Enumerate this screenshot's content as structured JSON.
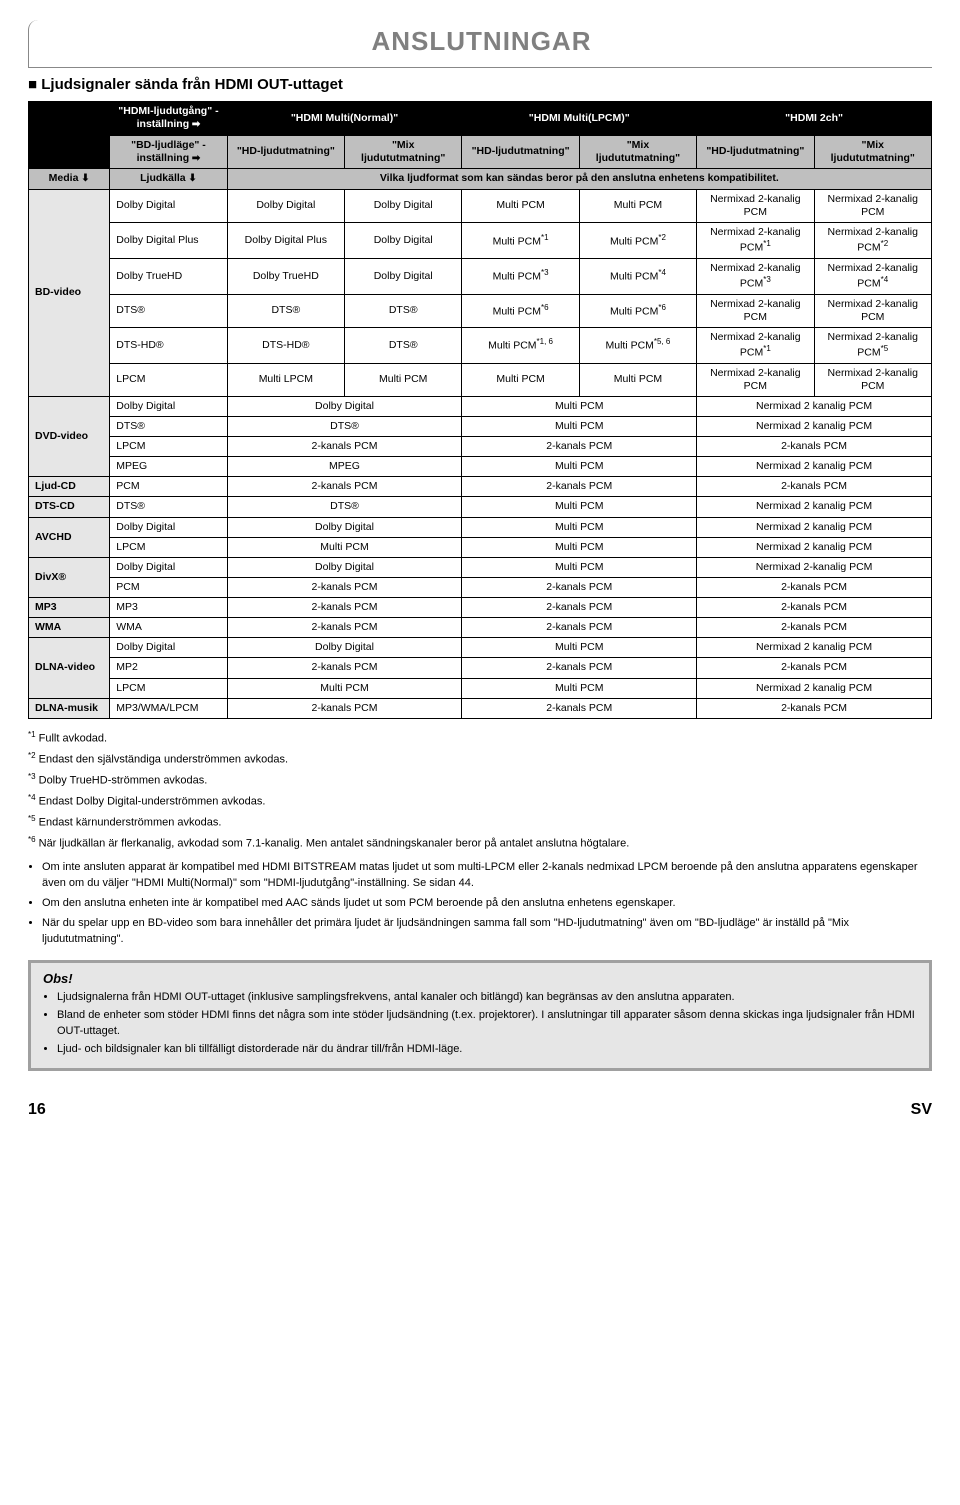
{
  "title": "ANSLUTNINGAR",
  "section": "Ljudsignaler sända från HDMI OUT-uttaget",
  "headers": {
    "hdmi_out": "\"HDMI-ljudutgång\" - inställning",
    "multi_normal": "\"HDMI Multi(Normal)\"",
    "multi_lpcm": "\"HDMI Multi(LPCM)\"",
    "hdmi_2ch": "\"HDMI 2ch\"",
    "bd_mode": "\"BD-ljudläge\" - inställning",
    "hd_out": "\"HD-ljudutmatning\"",
    "mix_out": "\"Mix ljudututmatning\"",
    "media": "Media",
    "source": "Ljudkälla",
    "compat": "Vilka ljudformat som kan sändas beror på den anslutna enhetens kompatibilitet."
  },
  "bd_rows": [
    {
      "src": "Dolby Digital",
      "c": [
        "Dolby Digital",
        "Dolby Digital",
        "Multi PCM",
        "Multi PCM",
        "Nermixad 2-kanalig PCM",
        "Nermixad 2-kanalig PCM"
      ]
    },
    {
      "src": "Dolby Digital Plus",
      "c": [
        "Dolby Digital Plus",
        "Dolby Digital",
        "Multi PCM<sup>*1</sup>",
        "Multi PCM<sup>*2</sup>",
        "Nermixad 2-kanalig PCM<sup>*1</sup>",
        "Nermixad 2-kanalig PCM<sup>*2</sup>"
      ]
    },
    {
      "src": "Dolby TrueHD",
      "c": [
        "Dolby TrueHD",
        "Dolby Digital",
        "Multi PCM<sup>*3</sup>",
        "Multi PCM<sup>*4</sup>",
        "Nermixad 2-kanalig PCM<sup>*3</sup>",
        "Nermixad 2-kanalig PCM<sup>*4</sup>"
      ]
    },
    {
      "src": "DTS®",
      "c": [
        "DTS®",
        "DTS®",
        "Multi PCM<sup>*6</sup>",
        "Multi PCM<sup>*6</sup>",
        "Nermixad 2-kanalig PCM",
        "Nermixad 2-kanalig PCM"
      ]
    },
    {
      "src": "DTS-HD®",
      "c": [
        "DTS-HD®",
        "DTS®",
        "Multi PCM<sup>*1, 6</sup>",
        "Multi PCM<sup>*5, 6</sup>",
        "Nermixad 2-kanalig PCM<sup>*1</sup>",
        "Nermixad 2-kanalig PCM<sup>*5</sup>"
      ]
    },
    {
      "src": "LPCM",
      "c": [
        "Multi LPCM",
        "Multi PCM",
        "Multi PCM",
        "Multi PCM",
        "Nermixad 2-kanalig PCM",
        "Nermixad 2-kanalig PCM"
      ]
    }
  ],
  "wide_sections": [
    {
      "media": "DVD-video",
      "rows": [
        {
          "src": "Dolby Digital",
          "c": [
            "Dolby Digital",
            "Multi PCM",
            "Nermixad 2 kanalig PCM"
          ]
        },
        {
          "src": "DTS®",
          "c": [
            "DTS®",
            "Multi PCM",
            "Nermixad 2 kanalig PCM"
          ]
        },
        {
          "src": "LPCM",
          "c": [
            "2-kanals PCM",
            "2-kanals PCM",
            "2-kanals PCM"
          ]
        },
        {
          "src": "MPEG",
          "c": [
            "MPEG",
            "Multi PCM",
            "Nermixad 2 kanalig PCM"
          ]
        }
      ]
    },
    {
      "media": "Ljud-CD",
      "rows": [
        {
          "src": "PCM",
          "c": [
            "2-kanals PCM",
            "2-kanals PCM",
            "2-kanals PCM"
          ]
        }
      ]
    },
    {
      "media": "DTS-CD",
      "rows": [
        {
          "src": "DTS®",
          "c": [
            "DTS®",
            "Multi PCM",
            "Nermixad 2 kanalig PCM"
          ]
        }
      ]
    },
    {
      "media": "AVCHD",
      "rows": [
        {
          "src": "Dolby Digital",
          "c": [
            "Dolby Digital",
            "Multi PCM",
            "Nermixad 2 kanalig PCM"
          ]
        },
        {
          "src": "LPCM",
          "c": [
            "Multi PCM",
            "Multi PCM",
            "Nermixad 2 kanalig PCM"
          ]
        }
      ]
    },
    {
      "media": "DivX®",
      "rows": [
        {
          "src": "Dolby Digital",
          "c": [
            "Dolby Digital",
            "Multi PCM",
            "Nermixad 2-kanalig PCM"
          ]
        },
        {
          "src": "PCM",
          "c": [
            "2-kanals PCM",
            "2-kanals PCM",
            "2-kanals PCM"
          ]
        }
      ]
    },
    {
      "media": "MP3",
      "rows": [
        {
          "src": "MP3",
          "c": [
            "2-kanals PCM",
            "2-kanals PCM",
            "2-kanals PCM"
          ]
        }
      ]
    },
    {
      "media": "WMA",
      "rows": [
        {
          "src": "WMA",
          "c": [
            "2-kanals PCM",
            "2-kanals PCM",
            "2-kanals PCM"
          ]
        }
      ]
    },
    {
      "media": "DLNA-video",
      "rows": [
        {
          "src": "Dolby Digital",
          "c": [
            "Dolby Digital",
            "Multi PCM",
            "Nermixad 2 kanalig PCM"
          ]
        },
        {
          "src": "MP2",
          "c": [
            "2-kanals PCM",
            "2-kanals PCM",
            "2-kanals PCM"
          ]
        },
        {
          "src": "LPCM",
          "c": [
            "Multi PCM",
            "Multi PCM",
            "Nermixad 2 kanalig PCM"
          ]
        }
      ]
    },
    {
      "media": "DLNA-musik",
      "rows": [
        {
          "src": "MP3/WMA/LPCM",
          "c": [
            "2-kanals PCM",
            "2-kanals PCM",
            "2-kanals PCM"
          ]
        }
      ]
    }
  ],
  "footnotes": [
    "<sup>*1</sup> Fullt avkodad.",
    "<sup>*2</sup> Endast den självständiga underströmmen avkodas.",
    "<sup>*3</sup> Dolby TrueHD-strömmen avkodas.",
    "<sup>*4</sup> Endast Dolby Digital-underströmmen avkodas.",
    "<sup>*5</sup> Endast kärnunderströmmen avkodas.",
    "<sup>*6</sup> När ljudkällan är flerkanalig, avkodad som 7.1-kanalig. Men antalet sändningskanaler beror på antalet anslutna högtalare."
  ],
  "bullets": [
    "Om inte ansluten apparat är kompatibel med HDMI BITSTREAM matas ljudet ut som multi-LPCM eller 2-kanals nedmixad LPCM beroende på den anslutna apparatens egenskaper även om du väljer \"HDMI Multi(Normal)\" som \"HDMI-ljudutgång\"-inställning. Se sidan 44.",
    "Om den anslutna enheten inte är kompatibel med AAC sänds ljudet ut som PCM beroende på den anslutna enhetens egenskaper.",
    "När du spelar upp en BD-video som bara innehåller det primära ljudet är ljudsändningen samma fall som \"HD-ljudutmatning\" även om \"BD-ljudläge\" är inställd på \"Mix ljudututmatning\"."
  ],
  "obs": {
    "title": "Obs!",
    "items": [
      "Ljudsignalerna från HDMI OUT-uttaget (inklusive samplingsfrekvens, antal kanaler och bitlängd) kan begränsas av den anslutna apparaten.",
      "Bland de enheter som stöder HDMI finns det några som inte stöder ljudsändning (t.ex. projektorer). I anslutningar till apparater såsom denna skickas inga ljudsignaler från HDMI OUT-uttaget.",
      "Ljud- och bildsignaler kan bli tillfälligt distorderade när du ändrar till/från HDMI-läge."
    ]
  },
  "footer": {
    "page": "16",
    "lang": "SV"
  }
}
